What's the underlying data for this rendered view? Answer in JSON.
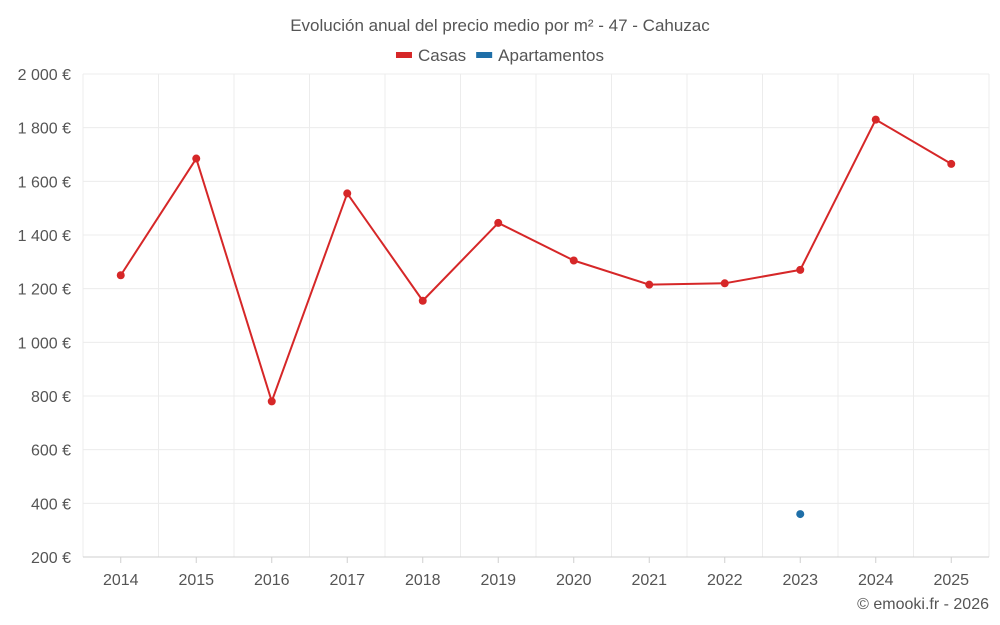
{
  "chart_data": {
    "type": "line",
    "title": "Evolución anual del precio medio por m² - 47 - Cahuzac",
    "categories": [
      "2014",
      "2015",
      "2016",
      "2017",
      "2018",
      "2019",
      "2020",
      "2021",
      "2022",
      "2023",
      "2024",
      "2025"
    ],
    "series": [
      {
        "name": "Casas",
        "color": "#d62728",
        "values": [
          1250,
          1685,
          780,
          1555,
          1155,
          1445,
          1305,
          1215,
          1220,
          1270,
          1830,
          1665
        ]
      },
      {
        "name": "Apartamentos",
        "color": "#1f6fa8",
        "values": [
          null,
          null,
          null,
          null,
          null,
          null,
          null,
          null,
          null,
          360,
          null,
          null
        ]
      }
    ],
    "ylim": [
      200,
      2000
    ],
    "yticks": [
      200,
      400,
      600,
      800,
      1000,
      1200,
      1400,
      1600,
      1800,
      2000
    ],
    "ytick_labels": [
      "200 €",
      "400 €",
      "600 €",
      "800 €",
      "1 000 €",
      "1 200 €",
      "1 400 €",
      "1 600 €",
      "1 800 €",
      "2 000 €"
    ],
    "grid": true,
    "legend_position": "top-center",
    "credit": "© emooki.fr - 2026"
  }
}
